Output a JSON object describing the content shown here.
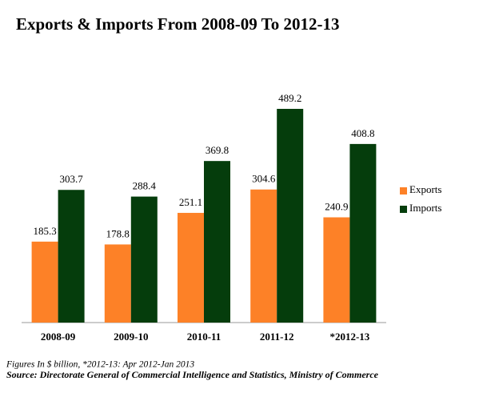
{
  "chart_data": {
    "type": "bar",
    "title": "Exports & Imports From 2008-09 To 2012-13",
    "categories": [
      "2008-09",
      "2009-10",
      "2010-11",
      "2011-12",
      "*2012-13"
    ],
    "series": [
      {
        "name": "Exports",
        "color": "#fd8127",
        "values": [
          185.3,
          178.8,
          251.1,
          304.6,
          240.9
        ]
      },
      {
        "name": "Imports",
        "color": "#053d0c",
        "values": [
          303.7,
          288.4,
          369.8,
          489.2,
          408.8
        ]
      }
    ],
    "legend": "right",
    "note": "Figures In $ billion, *2012-13:  Apr 2012-Jan 2013",
    "source": "Source: Directorate General of Commercial Intelligence and Statistics, Ministry of Commerce"
  }
}
